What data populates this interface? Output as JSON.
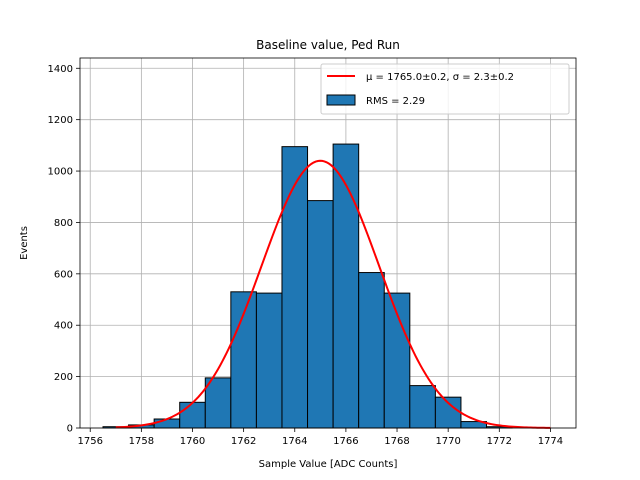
{
  "chart_data": {
    "type": "bar",
    "title": "Baseline value, Ped Run",
    "xlabel": "Sample Value [ADC Counts]",
    "ylabel": "Events",
    "xlim": [
      1755.6,
      1775.0
    ],
    "ylim": [
      0,
      1440
    ],
    "xticks": [
      1756,
      1758,
      1760,
      1762,
      1764,
      1766,
      1768,
      1770,
      1772,
      1774
    ],
    "yticks": [
      0,
      200,
      400,
      600,
      800,
      1000,
      1200,
      1400
    ],
    "grid": true,
    "legend_position": "top-right",
    "bin_edges": [
      1756.5,
      1757.5,
      1758.5,
      1759.5,
      1760.5,
      1761.5,
      1762.5,
      1763.5,
      1764.5,
      1765.5,
      1766.5,
      1767.5,
      1768.5,
      1769.5,
      1770.5,
      1771.5,
      1772.5
    ],
    "counts": [
      5,
      12,
      35,
      100,
      195,
      530,
      525,
      1095,
      885,
      1105,
      605,
      525,
      165,
      120,
      25,
      5
    ],
    "histogram_legend": "RMS = 2.29",
    "fit": {
      "mu": 1765.0,
      "sigma": 2.3,
      "peak": 1040,
      "x_range": [
        1757.0,
        1774.0
      ],
      "legend": "μ = 1765.0±0.2, σ = 2.3±0.2"
    },
    "colors": {
      "bar_fill": "#1f77b4",
      "bar_edge": "#000000",
      "fit_line": "#ff0000",
      "grid": "#b0b0b0"
    }
  }
}
